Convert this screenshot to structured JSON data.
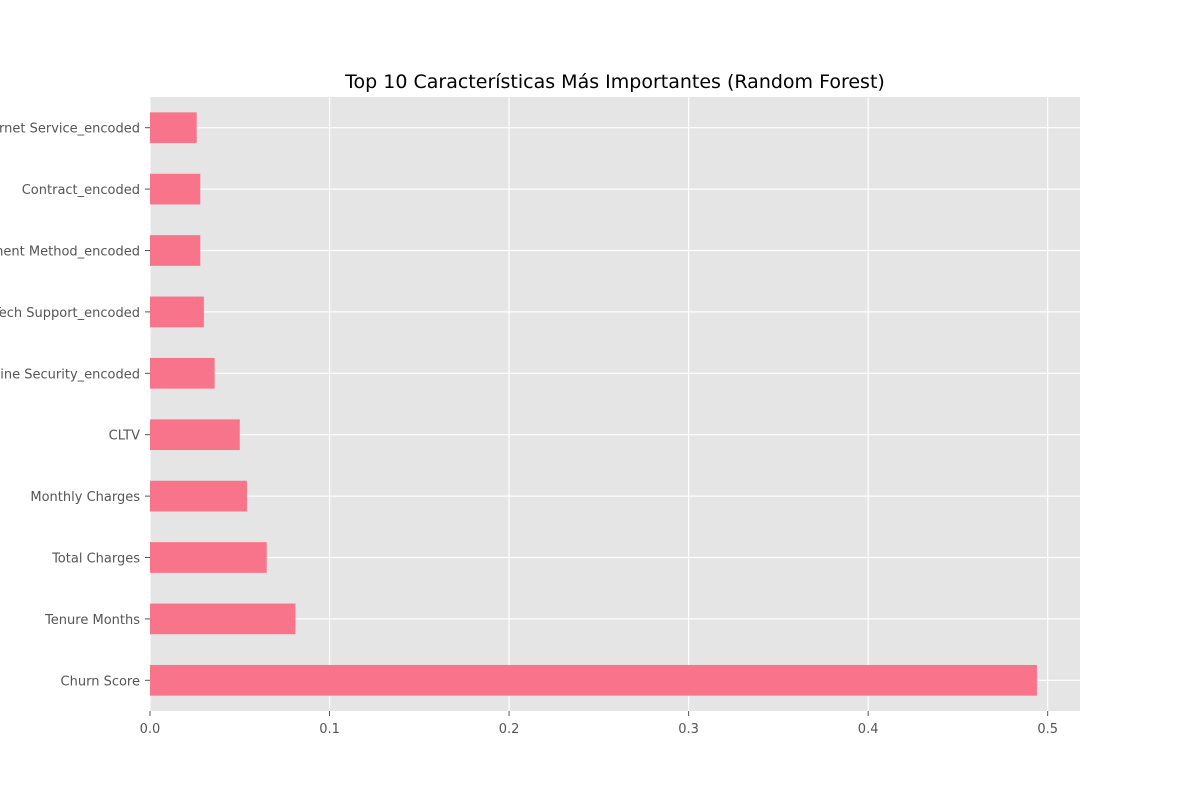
{
  "chart_data": {
    "type": "bar",
    "orientation": "horizontal",
    "title": "Top 10 Características Más Importantes (Random Forest)",
    "xlabel": "",
    "ylabel": "",
    "categories": [
      "Churn Score",
      "Tenure Months",
      "Total Charges",
      "Monthly Charges",
      "CLTV",
      "Online Security_encoded",
      "Tech Support_encoded",
      "Payment Method_encoded",
      "Contract_encoded",
      "Internet Service_encoded"
    ],
    "values": [
      0.494,
      0.081,
      0.065,
      0.054,
      0.05,
      0.036,
      0.03,
      0.028,
      0.028,
      0.026
    ],
    "xlim": [
      0,
      0.518
    ],
    "xticks": [
      0.0,
      0.1,
      0.2,
      0.3,
      0.4,
      0.5
    ],
    "xtick_labels": [
      "0.0",
      "0.1",
      "0.2",
      "0.3",
      "0.4",
      "0.5"
    ],
    "grid": true,
    "colors": {
      "bar": "#f8748a",
      "plot_background": "#e5e5e5",
      "grid": "#ffffff",
      "tick_text": "#555555"
    }
  }
}
